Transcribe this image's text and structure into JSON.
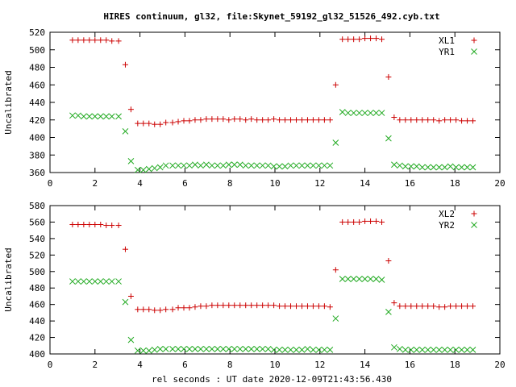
{
  "title": "HIRES continuum, gl32, file:Skynet_59192_gl32_51526_492.cyb.txt",
  "xlabel": "rel seconds : UT date 2020-12-09T21:43:56.430",
  "colors": {
    "plus": "#cc0000",
    "cross": "#22aa22"
  },
  "chart_data": [
    {
      "type": "scatter",
      "ylabel": "Uncalibrated",
      "xlim": [
        0,
        20
      ],
      "ylim": [
        360,
        520
      ],
      "xticks": [
        0,
        2,
        4,
        6,
        8,
        10,
        12,
        14,
        16,
        18,
        20
      ],
      "yticks": [
        360,
        380,
        400,
        420,
        440,
        460,
        480,
        500,
        520
      ],
      "legend_position": "top-right",
      "x": [
        1.0,
        1.25,
        1.5,
        1.75,
        2.0,
        2.25,
        2.5,
        2.75,
        3.05,
        3.35,
        3.6,
        3.9,
        4.15,
        4.4,
        4.65,
        4.9,
        5.15,
        5.45,
        5.7,
        5.95,
        6.2,
        6.45,
        6.7,
        6.95,
        7.2,
        7.45,
        7.7,
        7.95,
        8.2,
        8.45,
        8.7,
        8.95,
        9.2,
        9.45,
        9.7,
        9.95,
        10.2,
        10.45,
        10.7,
        10.95,
        11.2,
        11.45,
        11.7,
        11.95,
        12.2,
        12.45,
        12.7,
        13.0,
        13.25,
        13.5,
        13.75,
        14.0,
        14.25,
        14.5,
        14.75,
        15.05,
        15.3,
        15.55,
        15.8,
        16.05,
        16.3,
        16.55,
        16.8,
        17.05,
        17.3,
        17.55,
        17.8,
        18.05,
        18.3,
        18.55,
        18.8
      ],
      "series": [
        {
          "name": "XL1",
          "marker": "plus",
          "values": [
            511,
            511,
            511,
            511,
            511,
            511,
            511,
            510,
            510,
            483,
            432,
            416,
            416,
            416,
            415,
            415,
            417,
            417,
            418,
            419,
            419,
            420,
            420,
            421,
            421,
            421,
            421,
            420,
            421,
            421,
            420,
            421,
            420,
            420,
            420,
            421,
            420,
            420,
            420,
            420,
            420,
            420,
            420,
            420,
            420,
            420,
            460,
            512,
            512,
            512,
            512,
            513,
            513,
            513,
            512,
            469,
            423,
            420,
            420,
            420,
            420,
            420,
            420,
            420,
            419,
            420,
            420,
            420,
            419,
            419,
            419
          ]
        },
        {
          "name": "YR1",
          "marker": "cross",
          "values": [
            425,
            425,
            424,
            424,
            424,
            424,
            424,
            424,
            424,
            407,
            373,
            363,
            363,
            364,
            365,
            366,
            368,
            368,
            368,
            368,
            368,
            369,
            368,
            369,
            368,
            368,
            368,
            369,
            369,
            369,
            368,
            368,
            368,
            368,
            368,
            367,
            367,
            367,
            368,
            368,
            368,
            368,
            368,
            368,
            368,
            368,
            394,
            429,
            428,
            428,
            428,
            428,
            428,
            428,
            428,
            399,
            369,
            368,
            367,
            367,
            367,
            366,
            366,
            366,
            366,
            366,
            367,
            366,
            366,
            366,
            366
          ]
        }
      ]
    },
    {
      "type": "scatter",
      "ylabel": "Uncalibrated",
      "xlim": [
        0,
        20
      ],
      "ylim": [
        400,
        580
      ],
      "xticks": [
        0,
        2,
        4,
        6,
        8,
        10,
        12,
        14,
        16,
        18,
        20
      ],
      "yticks": [
        400,
        420,
        440,
        460,
        480,
        500,
        520,
        540,
        560,
        580
      ],
      "legend_position": "top-right",
      "x": [
        1.0,
        1.25,
        1.5,
        1.75,
        2.0,
        2.25,
        2.5,
        2.75,
        3.05,
        3.35,
        3.6,
        3.9,
        4.15,
        4.4,
        4.65,
        4.9,
        5.15,
        5.45,
        5.7,
        5.95,
        6.2,
        6.45,
        6.7,
        6.95,
        7.2,
        7.45,
        7.7,
        7.95,
        8.2,
        8.45,
        8.7,
        8.95,
        9.2,
        9.45,
        9.7,
        9.95,
        10.2,
        10.45,
        10.7,
        10.95,
        11.2,
        11.45,
        11.7,
        11.95,
        12.2,
        12.45,
        12.7,
        13.0,
        13.25,
        13.5,
        13.75,
        14.0,
        14.25,
        14.5,
        14.75,
        15.05,
        15.3,
        15.55,
        15.8,
        16.05,
        16.3,
        16.55,
        16.8,
        17.05,
        17.3,
        17.55,
        17.8,
        18.05,
        18.3,
        18.55,
        18.8
      ],
      "series": [
        {
          "name": "XL2",
          "marker": "plus",
          "values": [
            557,
            557,
            557,
            557,
            557,
            557,
            556,
            556,
            556,
            527,
            470,
            454,
            454,
            454,
            453,
            453,
            454,
            454,
            456,
            456,
            456,
            457,
            458,
            458,
            459,
            459,
            459,
            459,
            459,
            459,
            459,
            459,
            459,
            459,
            459,
            459,
            458,
            458,
            458,
            458,
            458,
            458,
            458,
            458,
            458,
            457,
            502,
            560,
            560,
            560,
            560,
            561,
            561,
            561,
            560,
            513,
            462,
            458,
            458,
            458,
            458,
            458,
            458,
            458,
            457,
            457,
            458,
            458,
            458,
            458,
            458
          ]
        },
        {
          "name": "YR2",
          "marker": "cross",
          "values": [
            488,
            488,
            488,
            488,
            488,
            488,
            488,
            488,
            488,
            463,
            417,
            404,
            404,
            404,
            405,
            406,
            406,
            406,
            406,
            406,
            406,
            406,
            406,
            406,
            406,
            406,
            406,
            406,
            406,
            406,
            406,
            406,
            406,
            406,
            406,
            405,
            405,
            405,
            405,
            405,
            405,
            406,
            405,
            405,
            405,
            405,
            443,
            491,
            491,
            491,
            491,
            491,
            491,
            491,
            490,
            451,
            408,
            406,
            405,
            405,
            405,
            405,
            405,
            405,
            405,
            405,
            405,
            405,
            405,
            405,
            405
          ]
        }
      ]
    }
  ]
}
